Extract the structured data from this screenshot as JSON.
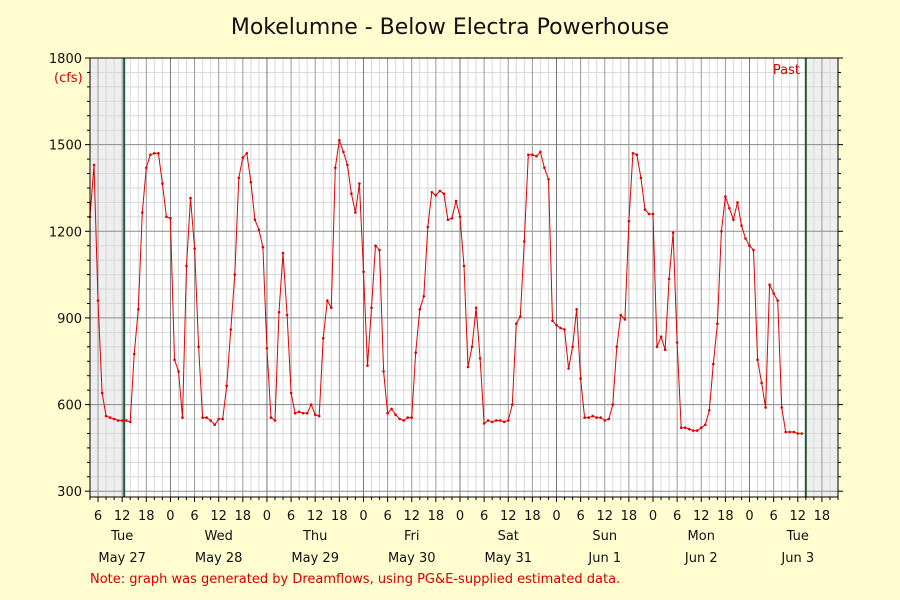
{
  "chart_data": {
    "type": "line",
    "title": "Mokelumne - Below Electra Powerhouse",
    "ylabel": "(cfs)",
    "ylim": [
      280,
      1800
    ],
    "y_ticks": [
      1800,
      1500,
      1200,
      900,
      600,
      300
    ],
    "x_unit": "hours since May 27 00:00",
    "xlim": [
      4,
      190
    ],
    "x_hour_ticks": [
      {
        "h": 6,
        "label": "6"
      },
      {
        "h": 12,
        "label": "12"
      },
      {
        "h": 18,
        "label": "18"
      },
      {
        "h": 24,
        "label": "0"
      },
      {
        "h": 30,
        "label": "6"
      },
      {
        "h": 36,
        "label": "12"
      },
      {
        "h": 42,
        "label": "18"
      },
      {
        "h": 48,
        "label": "0"
      },
      {
        "h": 54,
        "label": "6"
      },
      {
        "h": 60,
        "label": "12"
      },
      {
        "h": 66,
        "label": "18"
      },
      {
        "h": 72,
        "label": "0"
      },
      {
        "h": 78,
        "label": "6"
      },
      {
        "h": 84,
        "label": "12"
      },
      {
        "h": 90,
        "label": "18"
      },
      {
        "h": 96,
        "label": "0"
      },
      {
        "h": 102,
        "label": "6"
      },
      {
        "h": 108,
        "label": "12"
      },
      {
        "h": 114,
        "label": "18"
      },
      {
        "h": 120,
        "label": "0"
      },
      {
        "h": 126,
        "label": "6"
      },
      {
        "h": 132,
        "label": "12"
      },
      {
        "h": 138,
        "label": "18"
      },
      {
        "h": 144,
        "label": "0"
      },
      {
        "h": 150,
        "label": "6"
      },
      {
        "h": 156,
        "label": "12"
      },
      {
        "h": 162,
        "label": "18"
      },
      {
        "h": 168,
        "label": "0"
      },
      {
        "h": 174,
        "label": "6"
      },
      {
        "h": 180,
        "label": "12"
      },
      {
        "h": 186,
        "label": "18"
      }
    ],
    "day_labels": [
      {
        "h": 12,
        "day": "Tue",
        "date": "May 27"
      },
      {
        "h": 36,
        "day": "Wed",
        "date": "May 28"
      },
      {
        "h": 60,
        "day": "Thu",
        "date": "May 29"
      },
      {
        "h": 84,
        "day": "Fri",
        "date": "May 30"
      },
      {
        "h": 108,
        "day": "Sat",
        "date": "May 31"
      },
      {
        "h": 132,
        "day": "Sun",
        "date": "Jun 1"
      },
      {
        "h": 156,
        "day": "Mon",
        "date": "Jun 2"
      },
      {
        "h": 180,
        "day": "Tue",
        "date": "Jun 3"
      }
    ],
    "shaded_regions": [
      [
        4,
        12.5
      ],
      [
        182,
        190
      ]
    ],
    "marker_lines": [
      12.5,
      182
    ],
    "past_label": "Past",
    "grid": true,
    "series": [
      {
        "color": "#e00000",
        "x": [
          4,
          5,
          6,
          7,
          8,
          9,
          10,
          11,
          12,
          13,
          14,
          15,
          16,
          17,
          18,
          19,
          20,
          21,
          22,
          23,
          24,
          25,
          26,
          27,
          28,
          29,
          30,
          31,
          32,
          33,
          34,
          35,
          36,
          37,
          38,
          39,
          40,
          41,
          42,
          43,
          44,
          45,
          46,
          47,
          48,
          49,
          50,
          51,
          52,
          53,
          54,
          55,
          56,
          57,
          58,
          59,
          60,
          61,
          62,
          63,
          64,
          65,
          66,
          67,
          68,
          69,
          70,
          71,
          72,
          73,
          74,
          75,
          76,
          77,
          78,
          79,
          80,
          81,
          82,
          83,
          84,
          85,
          86,
          87,
          88,
          89,
          90,
          91,
          92,
          93,
          94,
          95,
          96,
          97,
          98,
          99,
          100,
          101,
          102,
          103,
          104,
          105,
          106,
          107,
          108,
          109,
          110,
          111,
          112,
          113,
          114,
          115,
          116,
          117,
          118,
          119,
          120,
          121,
          122,
          123,
          124,
          125,
          126,
          127,
          128,
          129,
          130,
          131,
          132,
          133,
          134,
          135,
          136,
          137,
          138,
          139,
          140,
          141,
          142,
          143,
          144,
          145,
          146,
          147,
          148,
          149,
          150,
          151,
          152,
          153,
          154,
          155,
          156,
          157,
          158,
          159,
          160,
          161,
          162,
          163,
          164,
          165,
          166,
          167,
          168,
          169,
          170,
          171,
          172,
          173,
          174,
          175,
          176,
          177,
          178,
          179,
          180,
          181
        ],
        "values": [
          1250,
          1430,
          960,
          640,
          560,
          555,
          550,
          545,
          545,
          545,
          540,
          775,
          930,
          1265,
          1420,
          1465,
          1470,
          1470,
          1365,
          1250,
          1245,
          755,
          715,
          555,
          1080,
          1315,
          1140,
          800,
          555,
          555,
          545,
          530,
          550,
          550,
          665,
          860,
          1050,
          1385,
          1455,
          1470,
          1370,
          1240,
          1205,
          1145,
          795,
          555,
          545,
          920,
          1125,
          910,
          640,
          570,
          575,
          570,
          570,
          600,
          565,
          560,
          830,
          960,
          935,
          1420,
          1515,
          1475,
          1430,
          1330,
          1265,
          1365,
          1060,
          735,
          935,
          1150,
          1135,
          715,
          570,
          585,
          565,
          550,
          545,
          555,
          555,
          780,
          930,
          975,
          1215,
          1335,
          1325,
          1340,
          1330,
          1240,
          1245,
          1305,
          1250,
          1080,
          730,
          800,
          935,
          760,
          535,
          545,
          540,
          545,
          545,
          540,
          545,
          600,
          880,
          905,
          1165,
          1465,
          1465,
          1460,
          1475,
          1420,
          1380,
          890,
          875,
          865,
          860,
          725,
          800,
          930,
          690,
          555,
          555,
          560,
          555,
          555,
          545,
          550,
          600,
          800,
          910,
          895,
          1235,
          1470,
          1465,
          1385,
          1275,
          1260,
          1260,
          800,
          835,
          790,
          1035,
          1195,
          815,
          520,
          520,
          515,
          510,
          510,
          520,
          530,
          580,
          740,
          880,
          1200,
          1320,
          1280,
          1240,
          1300,
          1220,
          1175,
          1150,
          1135,
          755,
          675,
          590,
          1015,
          985,
          960,
          590,
          505,
          505,
          505,
          500,
          500
        ]
      }
    ]
  },
  "note": "Note: graph was generated by Dreamflows, using PG&E-supplied estimated data."
}
